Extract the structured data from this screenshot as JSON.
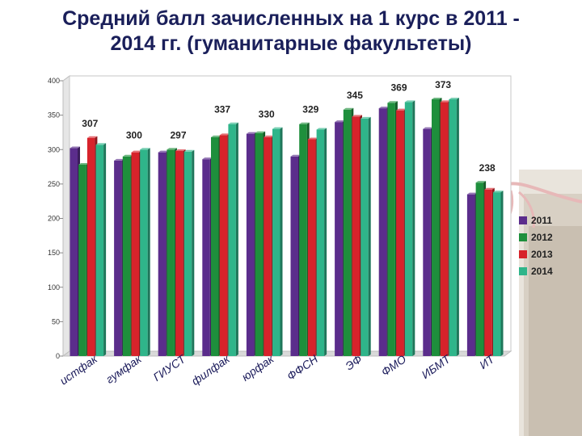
{
  "title_lines": [
    "Средний балл зачисленных  на 1 курс в 2011 -",
    "2014 гг. (гуманитарные факультеты)"
  ],
  "chart_data": {
    "type": "bar",
    "title": "Средний балл зачисленных  на 1 курс в 2011 - 2014 гг. (гуманитарные факультеты)",
    "categories": [
      "истфак",
      "гумфак",
      "ГИУСТ",
      "филфак",
      "юрфак",
      "ФФСН",
      "ЭФ",
      "ФМО",
      "ИБМТ",
      "ИТ"
    ],
    "series": [
      {
        "name": "2011",
        "color": "#5b2d8c",
        "values": [
          302,
          284,
          296,
          286,
          323,
          290,
          340,
          360,
          330,
          235
        ]
      },
      {
        "name": "2012",
        "color": "#1e8f3c",
        "values": [
          278,
          290,
          300,
          318,
          324,
          337,
          358,
          368,
          373,
          252
        ]
      },
      {
        "name": "2013",
        "color": "#d7232b",
        "values": [
          317,
          296,
          298,
          321,
          318,
          315,
          348,
          357,
          369,
          242
        ]
      },
      {
        "name": "2014",
        "color": "#2fb58a",
        "values": [
          307,
          300,
          297,
          337,
          330,
          329,
          345,
          369,
          373,
          238
        ]
      }
    ],
    "ylim": [
      0,
      400
    ],
    "yticks": [
      0,
      50,
      100,
      150,
      200,
      250,
      300,
      350,
      400
    ],
    "grid": false,
    "legend_position": "right",
    "annotations": [
      {
        "text": "307",
        "category": "истфак"
      },
      {
        "text": "300",
        "category": "гумфак"
      },
      {
        "text": "297",
        "category": "ГИУСТ"
      },
      {
        "text": "337",
        "category": "филфак"
      },
      {
        "text": "330",
        "category": "юрфак"
      },
      {
        "text": "329",
        "category": "ФФСН"
      },
      {
        "text": "345",
        "category": "ЭФ"
      },
      {
        "text": "369",
        "category": "ФМО"
      },
      {
        "text": "373",
        "category": "ИБМТ"
      },
      {
        "text": "238",
        "category": "ИТ"
      }
    ]
  }
}
